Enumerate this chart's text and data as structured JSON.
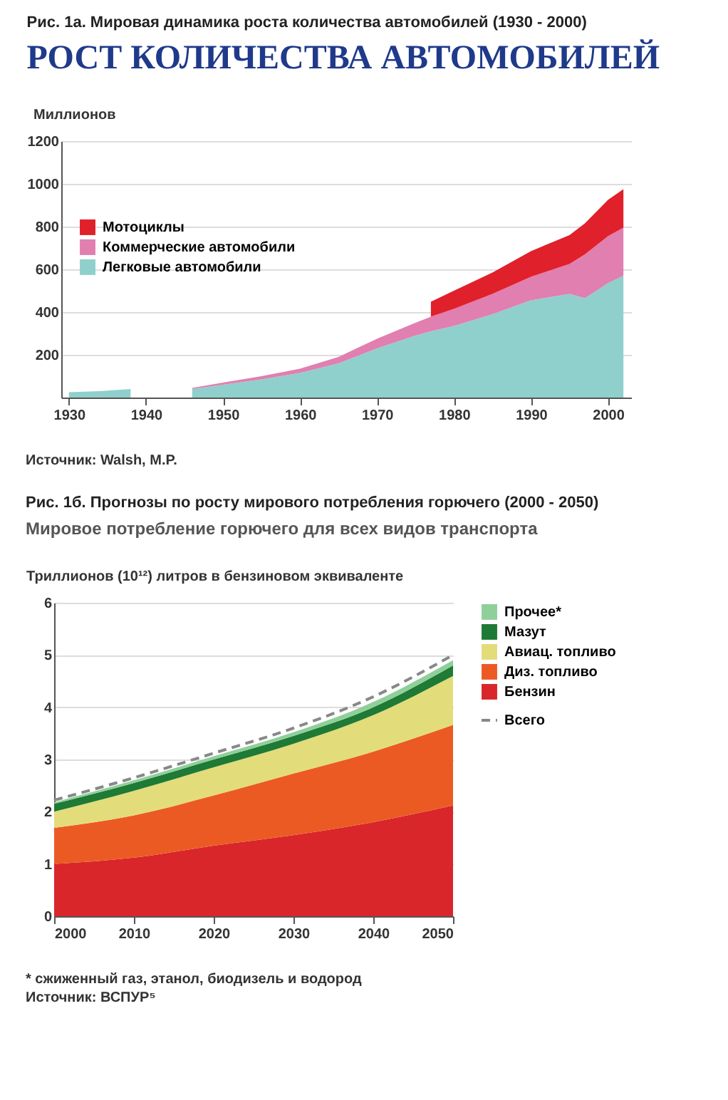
{
  "chart_data": [
    {
      "type": "area",
      "title": "Рис. 1а.  Мировая динамика роста количества автомобилей (1930 - 2000)",
      "subtitle": "РОСТ КОЛИЧЕСТВА АВТОМОБИЛЕЙ",
      "ylabel": "Миллионов",
      "x": [
        1930,
        1934,
        1938,
        1942,
        1946,
        1950,
        1955,
        1960,
        1965,
        1970,
        1975,
        1977,
        1980,
        1985,
        1990,
        1995,
        1997,
        2000,
        2002
      ],
      "series": [
        {
          "name": "Легковые автомобили",
          "color": "#8fd0cc",
          "values": [
            25,
            30,
            40,
            null,
            40,
            60,
            85,
            115,
            160,
            230,
            290,
            310,
            335,
            390,
            455,
            485,
            465,
            535,
            570
          ]
        },
        {
          "name": "Коммерческие автомобили",
          "color": "#e07fb0",
          "values": [
            null,
            null,
            null,
            null,
            5,
            10,
            15,
            20,
            30,
            45,
            60,
            68,
            80,
            95,
            110,
            140,
            205,
            220,
            225
          ]
        },
        {
          "name": "Мотоциклы",
          "color": "#e0202a",
          "values": [
            null,
            null,
            null,
            null,
            null,
            null,
            null,
            null,
            null,
            null,
            null,
            70,
            85,
            100,
            120,
            135,
            145,
            170,
            180
          ]
        }
      ],
      "stacked": true,
      "xlim": [
        1929,
        2003
      ],
      "xticks": [
        1930,
        1940,
        1950,
        1960,
        1970,
        1980,
        1990,
        2000
      ],
      "ylim": [
        0,
        1200
      ],
      "yticks": [
        200,
        400,
        600,
        800,
        1000,
        1200
      ],
      "grid": "y",
      "legend": "left",
      "annotations": [
        "Источник: Walsh, M.P."
      ]
    },
    {
      "type": "area",
      "title": "Рис. 1б. Прогнозы по росту мирового потребления горючего (2000 - 2050)",
      "subtitle": "Мировое потребление горючего для всех видов транспорта",
      "ylabel": "Триллионов (10¹²) литров в бензиновом эквиваленте",
      "x": [
        2000,
        2010,
        2020,
        2030,
        2040,
        2050
      ],
      "series": [
        {
          "name": "Бензин",
          "color": "#d9262b",
          "values": [
            1.0,
            1.12,
            1.35,
            1.55,
            1.8,
            2.12
          ]
        },
        {
          "name": "Диз. топливо",
          "color": "#ec5a24",
          "values": [
            0.69,
            0.81,
            0.96,
            1.18,
            1.35,
            1.54
          ]
        },
        {
          "name": "Авиац. топливо",
          "color": "#e3dc7a",
          "values": [
            0.31,
            0.47,
            0.54,
            0.57,
            0.7,
            0.94
          ]
        },
        {
          "name": "Мазут",
          "color": "#1e7a35",
          "values": [
            0.15,
            0.15,
            0.15,
            0.15,
            0.15,
            0.2
          ]
        },
        {
          "name": "Прочее*",
          "color": "#8fcf9a",
          "values": [
            0.03,
            0.05,
            0.06,
            0.07,
            0.1,
            0.1
          ]
        },
        {
          "name": "Всего",
          "type": "line",
          "color": "#888888",
          "line_style": "dashed",
          "values": [
            2.22,
            2.65,
            3.12,
            3.6,
            4.2,
            5.0
          ]
        }
      ],
      "stacked": true,
      "xlim": [
        2000,
        2050
      ],
      "xticks": [
        2000,
        2010,
        2020,
        2030,
        2040,
        2050
      ],
      "ylim": [
        0,
        6
      ],
      "yticks": [
        0,
        1,
        2,
        3,
        4,
        5,
        6
      ],
      "grid": "y",
      "legend": "right",
      "annotations": [
        "* сжиженный газ, этанол, биодизель и водород",
        "Источник: ВСПУР⁵"
      ]
    }
  ]
}
